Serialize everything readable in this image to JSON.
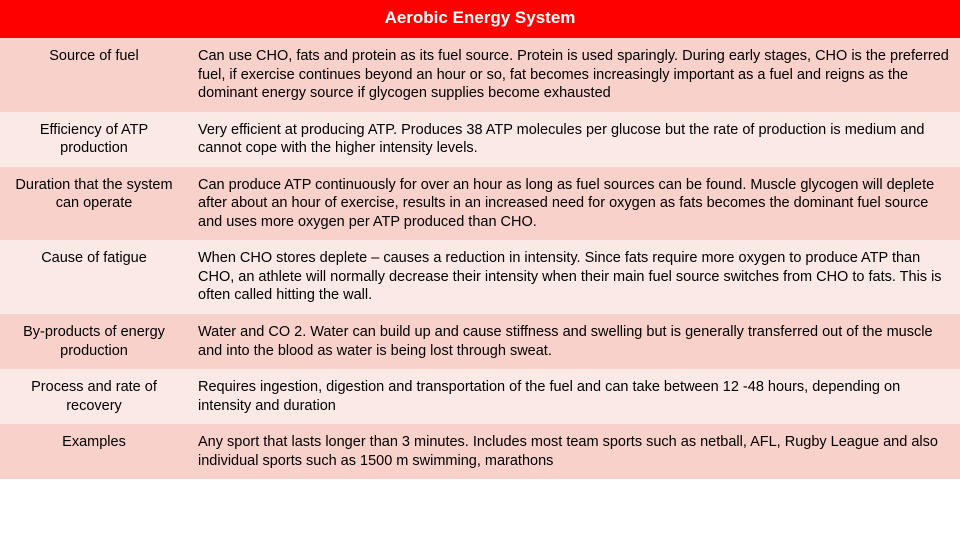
{
  "title": "Aerobic Energy System",
  "header_bg": "#ff0000",
  "row_colors": [
    "#f8d1cb",
    "#fbe9e6",
    "#f8d1cb",
    "#fbe9e6",
    "#f8d1cb",
    "#fbe9e6",
    "#f8d1cb"
  ],
  "rows": [
    {
      "label": "Source of fuel",
      "desc": "Can use CHO, fats and protein as its fuel source. Protein is used sparingly. During early stages, CHO is the preferred fuel, if exercise continues beyond an hour or so, fat becomes increasingly important as a fuel and reigns as the dominant energy source if glycogen supplies become exhausted"
    },
    {
      "label": "Efficiency of ATP production",
      "desc": "Very efficient at producing ATP. Produces 38 ATP molecules per glucose but the rate of production is medium and cannot cope with the higher intensity levels."
    },
    {
      "label": "Duration that the system can operate",
      "desc": "Can produce ATP continuously for over an hour as long as fuel sources can be found. Muscle glycogen will deplete after about an hour of exercise,  results in an increased need for oxygen as fats becomes the dominant fuel source and uses more oxygen per ATP produced than CHO."
    },
    {
      "label": "Cause of fatigue",
      "desc": "When CHO stores deplete – causes a reduction in intensity. Since fats require more oxygen to produce ATP than CHO, an athlete will normally decrease their intensity when their main fuel source switches from CHO to fats. This is often called hitting the wall."
    },
    {
      "label": "By-products of energy production",
      "desc": "Water and CO 2. Water can build up and cause stiffness and swelling but is generally transferred out of the muscle and into the blood as water is being lost through sweat."
    },
    {
      "label": "Process and rate of recovery",
      "desc": "Requires ingestion, digestion and transportation of the fuel and can take between 12 -48 hours, depending on intensity and duration"
    },
    {
      "label": "Examples",
      "desc": "Any sport that lasts longer than 3 minutes. Includes most team sports such as netball, AFL, Rugby League and also individual sports such as 1500 m swimming, marathons"
    }
  ]
}
